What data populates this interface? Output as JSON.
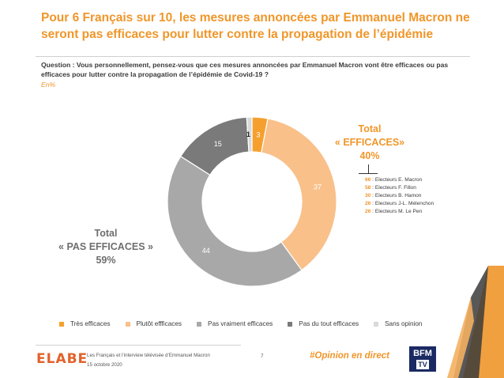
{
  "slide": {
    "title": "Pour 6 Français sur 10, les mesures annoncées par Emmanuel Macron ne seront pas efficaces pour lutter contre la propagation de l’épidémie",
    "question": "Question : Vous personnellement, pensez-vous que ces mesures annoncées par Emmanuel Macron vont être efficaces ou pas efficaces pour lutter contre la propagation de l’épidémie de Covid-19 ?",
    "unit": "En%"
  },
  "chart_data": {
    "type": "donut",
    "categories": [
      "Très efficaces",
      "Plutôt effficaces",
      "Pas vraiment efficaces",
      "Pas du tout efficaces",
      "Sans opinion"
    ],
    "values": [
      3,
      37,
      44,
      15,
      1
    ],
    "colors": [
      "#f5a02e",
      "#f9c08a",
      "#a8a8a8",
      "#7a7a7a",
      "#d9d9d9"
    ],
    "label_colors": [
      "#ffffff",
      "#ffffff",
      "#ffffff",
      "#ffffff",
      "#222222"
    ]
  },
  "totals": {
    "efficaces": {
      "line1": "Total",
      "line2": "« EFFICACES»",
      "line3": "40%"
    },
    "pas_efficaces": {
      "line1": "Total",
      "line2": "« PAS EFFICACES »",
      "line3": "59%"
    }
  },
  "voters": [
    {
      "value": "66",
      "label": " : Electeurs E. Macron"
    },
    {
      "value": "58",
      "label": " : Electeurs F. Fillon"
    },
    {
      "value": "30",
      "label": " : Electeurs B. Hamon"
    },
    {
      "value": "26",
      "label": " : Electeurs J-L. Mélenchon"
    },
    {
      "value": "26",
      "label": " : Electeurs M. Le Pen"
    }
  ],
  "footer": {
    "logo": "ELABE",
    "line1": "Les Français et l’interview télévisée d’Emmanuel Macron",
    "line2": "15 octobre 2020",
    "page": "7",
    "hashtag": "#Opinion en direct",
    "brand_line1": "BFM",
    "brand_line2": "TV"
  },
  "colors": {
    "accent": "#f0962a",
    "grey_text": "#6e6e6e"
  }
}
